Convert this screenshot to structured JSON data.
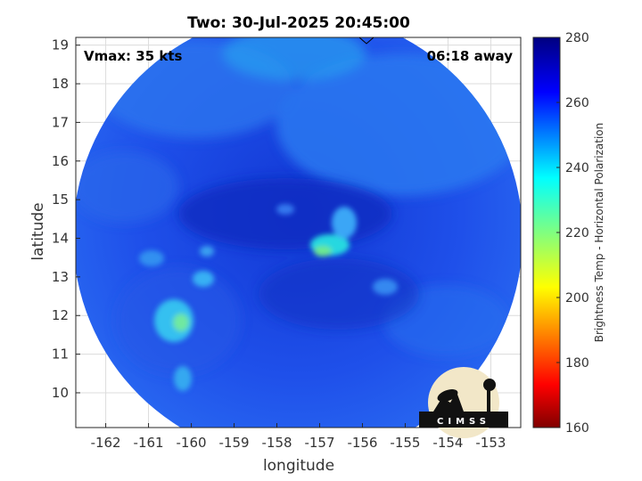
{
  "title": "Two: 30-Jul-2025 20:45:00",
  "annotations": {
    "vmax": "Vmax: 35 kts",
    "time_away": "06:18 away"
  },
  "axes": {
    "xlabel": "longitude",
    "ylabel": "latitude",
    "xlim": [
      -162.7,
      -152.3
    ],
    "ylim": [
      9.1,
      19.2
    ],
    "xticks": [
      "-162",
      "-161",
      "-160",
      "-159",
      "-158",
      "-157",
      "-156",
      "-155",
      "-154",
      "-153"
    ],
    "yticks": [
      "10",
      "11",
      "12",
      "13",
      "14",
      "15",
      "16",
      "17",
      "18",
      "19"
    ],
    "grid": true
  },
  "colorbar": {
    "label": "Brightness Temp - Horizontal Polarization",
    "min": 160,
    "max": 280,
    "ticks": [
      "160",
      "180",
      "200",
      "220",
      "240",
      "260",
      "280"
    ],
    "colormap": "jet-reversed"
  },
  "logo": {
    "text": "CIMSS"
  },
  "colors": {
    "background_tb": "#1f4ae6",
    "dark_core": "#1030c8",
    "warm_feature": "#22c2ea"
  }
}
